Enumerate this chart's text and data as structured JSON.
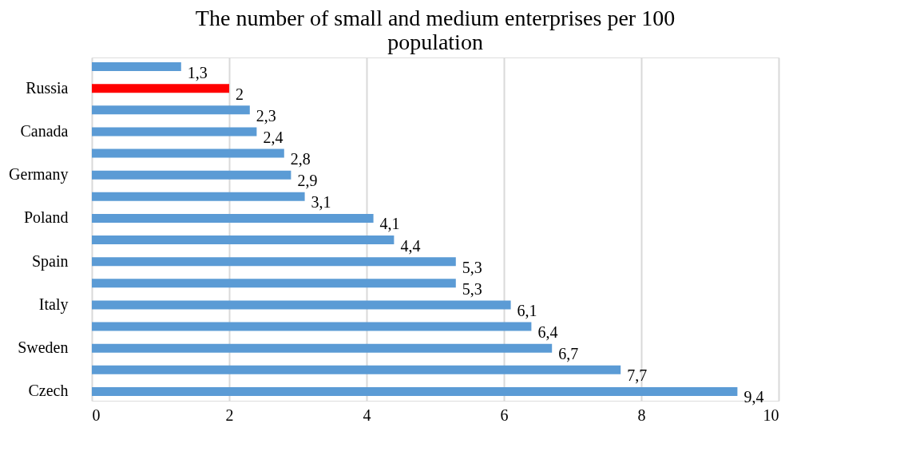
{
  "chart_data": {
    "type": "bar",
    "orientation": "horizontal",
    "title": "The number of small and medium enterprises per 100 population",
    "categories": [
      null,
      "Russia",
      null,
      "Canada",
      null,
      "Germany",
      null,
      "Poland",
      null,
      "Spain",
      null,
      "Italy",
      null,
      "Sweden",
      null,
      "Czech"
    ],
    "values": [
      1.3,
      2,
      2.3,
      2.4,
      2.8,
      2.9,
      3.1,
      4.1,
      4.4,
      5.3,
      5.3,
      6.1,
      6.4,
      6.7,
      7.7,
      9.4
    ],
    "value_labels": [
      "1,3",
      "2",
      "2,3",
      "2,4",
      "2,8",
      "2,9",
      "3,1",
      "4,1",
      "4,4",
      "5,3",
      "5,3",
      "6,1",
      "6,4",
      "6,7",
      "7,7",
      "9,4"
    ],
    "colors": [
      "#5b9bd5",
      "#ff0000",
      "#5b9bd5",
      "#5b9bd5",
      "#5b9bd5",
      "#5b9bd5",
      "#5b9bd5",
      "#5b9bd5",
      "#5b9bd5",
      "#5b9bd5",
      "#5b9bd5",
      "#5b9bd5",
      "#5b9bd5",
      "#5b9bd5",
      "#5b9bd5",
      "#5b9bd5"
    ],
    "xlim": [
      0,
      10
    ],
    "xticks": [
      0,
      2,
      4,
      6,
      8,
      10
    ],
    "grid": "x"
  }
}
